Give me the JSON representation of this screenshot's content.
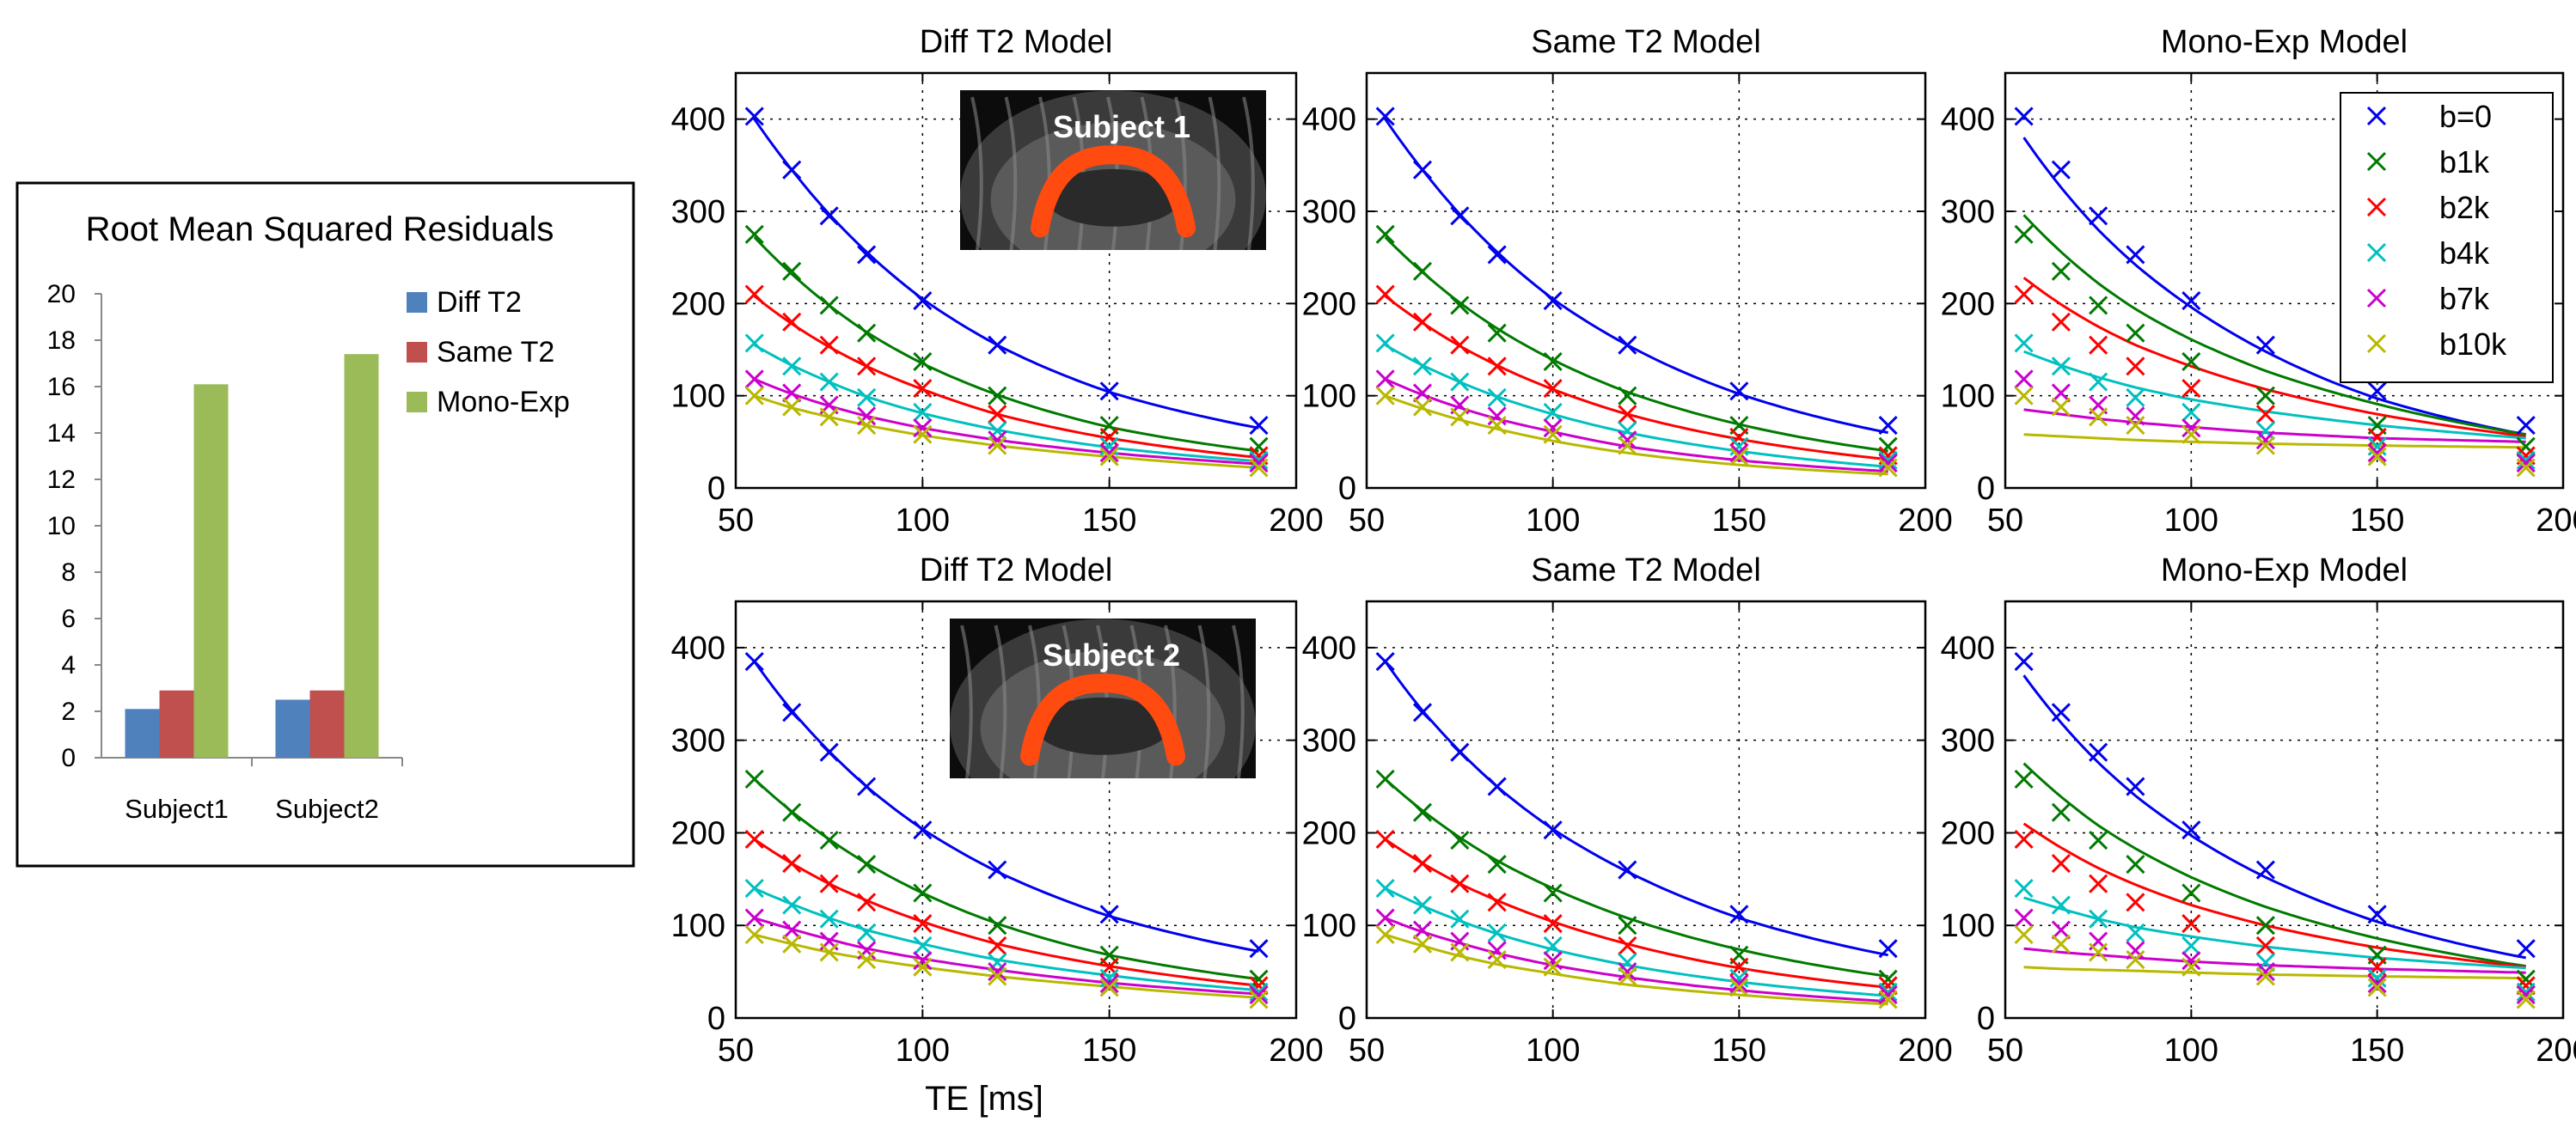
{
  "colors": {
    "b0": "#0000ee",
    "b1k": "#007a00",
    "b2k": "#ff0000",
    "b4k": "#00c0c0",
    "b7k": "#cc00cc",
    "b10k": "#b8b800",
    "diff_t2_bar": "#4f81bd",
    "same_t2_bar": "#c0504d",
    "mono_exp_bar": "#9bbb59"
  },
  "x_axis_label": "TE [ms]",
  "icons": [
    "subject-1-brain-inset-image",
    "subject-2-brain-inset-image"
  ],
  "chart_data": [
    {
      "type": "bar",
      "title": "Root Mean Squared Residuals",
      "categories": [
        "Subject1",
        "Subject2"
      ],
      "series": [
        {
          "name": "Diff T2",
          "values": [
            2.1,
            2.5
          ]
        },
        {
          "name": "Same T2",
          "values": [
            2.9,
            2.9
          ]
        },
        {
          "name": "Mono-Exp",
          "values": [
            16.1,
            17.4
          ]
        }
      ],
      "ylim": [
        0,
        20
      ],
      "yticks": [
        0,
        2,
        4,
        6,
        8,
        10,
        12,
        14,
        16,
        18,
        20
      ],
      "legend": "right"
    },
    {
      "type": "scatter",
      "title": "Diff T2 Model",
      "inset_label": "Subject 1",
      "xlim": [
        50,
        200
      ],
      "ylim": [
        0,
        450
      ],
      "xticks": [
        50,
        100,
        150,
        200
      ],
      "yticks": [
        0,
        100,
        200,
        300,
        400
      ],
      "grid": true,
      "x": [
        55,
        65,
        75,
        85,
        100,
        120,
        150,
        190
      ],
      "series": [
        {
          "name": "b=0",
          "points": [
            403,
            345,
            295,
            253,
            203,
            155,
            105,
            68
          ],
          "fit": [
            400,
            345,
            297,
            256,
            205,
            155,
            104,
            65
          ]
        },
        {
          "name": "b1k",
          "points": [
            275,
            235,
            198,
            168,
            137,
            100,
            68,
            45
          ],
          "fit": [
            272,
            232,
            198,
            169,
            135,
            101,
            66,
            40
          ]
        },
        {
          "name": "b2k",
          "points": [
            210,
            180,
            155,
            132,
            108,
            80,
            55,
            35
          ],
          "fit": [
            208,
            178,
            153,
            132,
            107,
            80,
            54,
            33
          ]
        },
        {
          "name": "b4k",
          "points": [
            157,
            132,
            115,
            98,
            82,
            62,
            45,
            30
          ],
          "fit": [
            155,
            133,
            115,
            99,
            81,
            63,
            44,
            29
          ]
        },
        {
          "name": "b7k",
          "points": [
            118,
            103,
            90,
            78,
            65,
            52,
            38,
            27
          ],
          "fit": [
            118,
            102,
            89,
            78,
            65,
            52,
            38,
            26
          ]
        },
        {
          "name": "b10k",
          "points": [
            100,
            88,
            77,
            68,
            58,
            46,
            34,
            22
          ],
          "fit": [
            100,
            87,
            77,
            68,
            57,
            46,
            34,
            22
          ]
        }
      ]
    },
    {
      "type": "scatter",
      "title": "Same T2 Model",
      "xlim": [
        50,
        200
      ],
      "ylim": [
        0,
        450
      ],
      "xticks": [
        50,
        100,
        150,
        200
      ],
      "yticks": [
        0,
        100,
        200,
        300,
        400
      ],
      "grid": true,
      "x": [
        55,
        65,
        75,
        85,
        100,
        120,
        150,
        190
      ],
      "series": [
        {
          "name": "b=0",
          "points": [
            403,
            345,
            295,
            253,
            203,
            155,
            105,
            68
          ],
          "fit": [
            400,
            345,
            297,
            256,
            205,
            155,
            102,
            60
          ]
        },
        {
          "name": "b1k",
          "points": [
            275,
            235,
            198,
            168,
            137,
            100,
            68,
            45
          ],
          "fit": [
            272,
            234,
            201,
            173,
            139,
            104,
            69,
            40
          ]
        },
        {
          "name": "b2k",
          "points": [
            210,
            180,
            155,
            132,
            108,
            80,
            55,
            35
          ],
          "fit": [
            208,
            179,
            154,
            133,
            107,
            80,
            53,
            31
          ]
        },
        {
          "name": "b4k",
          "points": [
            157,
            132,
            115,
            98,
            82,
            62,
            45,
            30
          ],
          "fit": [
            155,
            133,
            115,
            99,
            80,
            60,
            40,
            23
          ]
        },
        {
          "name": "b7k",
          "points": [
            118,
            103,
            90,
            78,
            65,
            52,
            38,
            27
          ],
          "fit": [
            118,
            101,
            87,
            75,
            61,
            45,
            30,
            18
          ]
        },
        {
          "name": "b10k",
          "points": [
            100,
            88,
            77,
            68,
            58,
            46,
            34,
            22
          ],
          "fit": [
            100,
            86,
            74,
            64,
            51,
            38,
            25,
            15
          ]
        }
      ]
    },
    {
      "type": "scatter",
      "title": "Mono-Exp Model",
      "xlim": [
        50,
        200
      ],
      "ylim": [
        0,
        450
      ],
      "xticks": [
        50,
        100,
        150,
        200
      ],
      "yticks": [
        0,
        100,
        200,
        300,
        400
      ],
      "grid": true,
      "legend": "top-right",
      "legend_entries": [
        "b=0",
        "b1k",
        "b2k",
        "b4k",
        "b7k",
        "b10k"
      ],
      "x": [
        55,
        65,
        75,
        85,
        100,
        120,
        150,
        190
      ],
      "series": [
        {
          "name": "b=0",
          "points": [
            403,
            345,
            295,
            253,
            203,
            155,
            105,
            68
          ],
          "fit": [
            380,
            326,
            280,
            242,
            196,
            148,
            97,
            58
          ]
        },
        {
          "name": "b1k",
          "points": [
            275,
            235,
            198,
            168,
            137,
            100,
            68,
            45
          ],
          "fit": [
            296,
            256,
            222,
            194,
            161,
            127,
            91,
            58
          ]
        },
        {
          "name": "b2k",
          "points": [
            210,
            180,
            155,
            132,
            108,
            80,
            55,
            35
          ],
          "fit": [
            228,
            199,
            175,
            155,
            132,
            107,
            80,
            56
          ]
        },
        {
          "name": "b4k",
          "points": [
            157,
            132,
            115,
            98,
            82,
            62,
            45,
            30
          ],
          "fit": [
            148,
            133,
            120,
            109,
            96,
            83,
            68,
            54
          ]
        },
        {
          "name": "b7k",
          "points": [
            118,
            103,
            90,
            78,
            65,
            52,
            38,
            27
          ],
          "fit": [
            85,
            80,
            75,
            71,
            66,
            60,
            54,
            50
          ]
        },
        {
          "name": "b10k",
          "points": [
            100,
            88,
            77,
            68,
            58,
            46,
            34,
            22
          ],
          "fit": [
            58,
            56,
            54,
            52,
            50,
            48,
            46,
            44
          ]
        }
      ]
    },
    {
      "type": "scatter",
      "title": "Diff T2 Model",
      "inset_label": "Subject 2",
      "xlim": [
        50,
        200
      ],
      "ylim": [
        0,
        450
      ],
      "xticks": [
        50,
        100,
        150,
        200
      ],
      "yticks": [
        0,
        100,
        200,
        300,
        400
      ],
      "grid": true,
      "x": [
        55,
        65,
        75,
        85,
        100,
        120,
        150,
        190
      ],
      "series": [
        {
          "name": "b=0",
          "points": [
            385,
            330,
            287,
            250,
            203,
            160,
            112,
            75
          ],
          "fit": [
            385,
            332,
            288,
            250,
            204,
            158,
            110,
            72
          ]
        },
        {
          "name": "b1k",
          "points": [
            258,
            222,
            192,
            166,
            135,
            100,
            68,
            42
          ],
          "fit": [
            258,
            223,
            193,
            167,
            135,
            102,
            68,
            42
          ]
        },
        {
          "name": "b2k",
          "points": [
            193,
            167,
            145,
            125,
            102,
            78,
            55,
            35
          ],
          "fit": [
            193,
            167,
            145,
            127,
            104,
            80,
            56,
            35
          ]
        },
        {
          "name": "b4k",
          "points": [
            140,
            122,
            107,
            92,
            78,
            60,
            43,
            28
          ],
          "fit": [
            140,
            123,
            108,
            95,
            80,
            63,
            46,
            30
          ]
        },
        {
          "name": "b7k",
          "points": [
            108,
            95,
            83,
            73,
            62,
            50,
            37,
            25
          ],
          "fit": [
            108,
            96,
            85,
            75,
            64,
            52,
            38,
            26
          ]
        },
        {
          "name": "b10k",
          "points": [
            90,
            80,
            71,
            63,
            55,
            45,
            33,
            20
          ],
          "fit": [
            90,
            80,
            71,
            64,
            55,
            45,
            34,
            22
          ]
        }
      ]
    },
    {
      "type": "scatter",
      "title": "Same T2 Model",
      "xlim": [
        50,
        200
      ],
      "ylim": [
        0,
        450
      ],
      "xticks": [
        50,
        100,
        150,
        200
      ],
      "yticks": [
        0,
        100,
        200,
        300,
        400
      ],
      "grid": true,
      "x": [
        55,
        65,
        75,
        85,
        100,
        120,
        150,
        190
      ],
      "series": [
        {
          "name": "b=0",
          "points": [
            385,
            330,
            287,
            250,
            203,
            160,
            112,
            75
          ],
          "fit": [
            385,
            332,
            288,
            250,
            204,
            158,
            108,
            68
          ]
        },
        {
          "name": "b1k",
          "points": [
            258,
            222,
            192,
            166,
            135,
            100,
            68,
            42
          ],
          "fit": [
            258,
            224,
            195,
            170,
            140,
            108,
            74,
            45
          ]
        },
        {
          "name": "b2k",
          "points": [
            193,
            167,
            145,
            125,
            102,
            78,
            55,
            35
          ],
          "fit": [
            193,
            167,
            145,
            127,
            104,
            80,
            54,
            33
          ]
        },
        {
          "name": "b4k",
          "points": [
            140,
            122,
            107,
            92,
            78,
            60,
            43,
            28
          ],
          "fit": [
            140,
            121,
            105,
            91,
            74,
            57,
            39,
            24
          ]
        },
        {
          "name": "b7k",
          "points": [
            108,
            95,
            83,
            73,
            62,
            50,
            37,
            25
          ],
          "fit": [
            108,
            93,
            81,
            70,
            57,
            44,
            30,
            18
          ]
        },
        {
          "name": "b10k",
          "points": [
            90,
            80,
            71,
            63,
            55,
            45,
            33,
            20
          ],
          "fit": [
            90,
            78,
            67,
            58,
            48,
            36,
            25,
            15
          ]
        }
      ]
    },
    {
      "type": "scatter",
      "title": "Mono-Exp Model",
      "xlim": [
        50,
        200
      ],
      "ylim": [
        0,
        450
      ],
      "xticks": [
        50,
        100,
        150,
        200
      ],
      "yticks": [
        0,
        100,
        200,
        300,
        400
      ],
      "grid": true,
      "x": [
        55,
        65,
        75,
        85,
        100,
        120,
        150,
        190
      ],
      "series": [
        {
          "name": "b=0",
          "points": [
            385,
            330,
            287,
            250,
            203,
            160,
            112,
            75
          ],
          "fit": [
            370,
            319,
            276,
            240,
            197,
            152,
            104,
            65
          ]
        },
        {
          "name": "b1k",
          "points": [
            258,
            222,
            192,
            166,
            135,
            100,
            68,
            42
          ],
          "fit": [
            275,
            239,
            208,
            183,
            152,
            120,
            86,
            56
          ]
        },
        {
          "name": "b2k",
          "points": [
            193,
            167,
            145,
            125,
            102,
            78,
            55,
            35
          ],
          "fit": [
            210,
            184,
            162,
            144,
            122,
            100,
            76,
            55
          ]
        },
        {
          "name": "b4k",
          "points": [
            140,
            122,
            107,
            92,
            78,
            60,
            43,
            28
          ],
          "fit": [
            130,
            118,
            107,
            98,
            88,
            77,
            65,
            54
          ]
        },
        {
          "name": "b7k",
          "points": [
            108,
            95,
            83,
            73,
            62,
            50,
            37,
            25
          ],
          "fit": [
            75,
            71,
            68,
            65,
            61,
            57,
            53,
            49
          ]
        },
        {
          "name": "b10k",
          "points": [
            90,
            80,
            71,
            63,
            55,
            45,
            33,
            20
          ],
          "fit": [
            55,
            53,
            52,
            51,
            49,
            47,
            45,
            43
          ]
        }
      ]
    }
  ]
}
